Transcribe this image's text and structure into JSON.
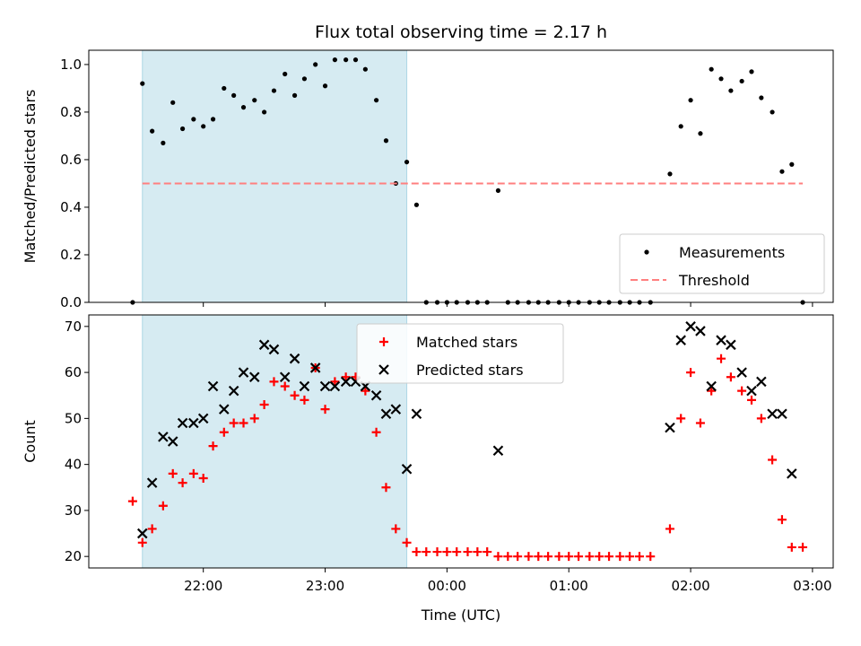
{
  "chart_data": {
    "title": "Flux total observing time = 2.17 h",
    "xlabel": "Time (UTC)",
    "x_ticks": [
      "22:00",
      "23:00",
      "00:00",
      "01:00",
      "02:00",
      "03:00"
    ],
    "x_range_hours": [
      21.06,
      27.17
    ],
    "shaded_interval_hours": [
      21.5,
      23.67
    ],
    "colors": {
      "shade": "#add8e6",
      "matched": "#ff0000",
      "predicted": "#000000",
      "threshold": "#ff7f7f",
      "measurements": "#000000"
    },
    "panels": [
      {
        "type": "scatter",
        "ylabel": "Matched/Predicted stars",
        "ylim": [
          0,
          1.06
        ],
        "y_ticks": [
          "0.0",
          "0.2",
          "0.4",
          "0.6",
          "0.8",
          "1.0"
        ],
        "legend_position": "lower-right",
        "series": [
          {
            "name": "Measurements",
            "marker": "dot",
            "points": [
              [
                21.42,
                0.0
              ],
              [
                21.5,
                0.92
              ],
              [
                21.58,
                0.72
              ],
              [
                21.67,
                0.67
              ],
              [
                21.75,
                0.84
              ],
              [
                21.83,
                0.73
              ],
              [
                21.92,
                0.77
              ],
              [
                22.0,
                0.74
              ],
              [
                22.08,
                0.77
              ],
              [
                22.17,
                0.9
              ],
              [
                22.25,
                0.87
              ],
              [
                22.33,
                0.82
              ],
              [
                22.42,
                0.85
              ],
              [
                22.5,
                0.8
              ],
              [
                22.58,
                0.89
              ],
              [
                22.67,
                0.96
              ],
              [
                22.75,
                0.87
              ],
              [
                22.83,
                0.94
              ],
              [
                22.92,
                1.0
              ],
              [
                23.0,
                0.91
              ],
              [
                23.08,
                1.02
              ],
              [
                23.17,
                1.02
              ],
              [
                23.25,
                1.02
              ],
              [
                23.33,
                0.98
              ],
              [
                23.42,
                0.85
              ],
              [
                23.5,
                0.68
              ],
              [
                23.58,
                0.5
              ],
              [
                23.67,
                0.59
              ],
              [
                23.75,
                0.41
              ],
              [
                23.83,
                0.0
              ],
              [
                23.92,
                0.0
              ],
              [
                24.0,
                0.0
              ],
              [
                24.08,
                0.0
              ],
              [
                24.17,
                0.0
              ],
              [
                24.25,
                0.0
              ],
              [
                24.33,
                0.0
              ],
              [
                24.42,
                0.47
              ],
              [
                24.5,
                0.0
              ],
              [
                24.58,
                0.0
              ],
              [
                24.67,
                0.0
              ],
              [
                24.75,
                0.0
              ],
              [
                24.83,
                0.0
              ],
              [
                24.92,
                0.0
              ],
              [
                25.0,
                0.0
              ],
              [
                25.08,
                0.0
              ],
              [
                25.17,
                0.0
              ],
              [
                25.25,
                0.0
              ],
              [
                25.33,
                0.0
              ],
              [
                25.42,
                0.0
              ],
              [
                25.5,
                0.0
              ],
              [
                25.58,
                0.0
              ],
              [
                25.67,
                0.0
              ],
              [
                25.83,
                0.54
              ],
              [
                25.92,
                0.74
              ],
              [
                26.0,
                0.85
              ],
              [
                26.08,
                0.71
              ],
              [
                26.17,
                0.98
              ],
              [
                26.25,
                0.94
              ],
              [
                26.33,
                0.89
              ],
              [
                26.42,
                0.93
              ],
              [
                26.5,
                0.97
              ],
              [
                26.58,
                0.86
              ],
              [
                26.67,
                0.8
              ],
              [
                26.75,
                0.55
              ],
              [
                26.83,
                0.58
              ],
              [
                26.92,
                0.0
              ]
            ]
          },
          {
            "name": "Threshold",
            "marker": "dashed-line",
            "points": [
              [
                21.5,
                0.5
              ],
              [
                26.92,
                0.5
              ]
            ]
          }
        ]
      },
      {
        "type": "scatter",
        "ylabel": "Count",
        "ylim": [
          17.5,
          72.5
        ],
        "y_ticks": [
          "20",
          "30",
          "40",
          "50",
          "60",
          "70"
        ],
        "legend_position": "top-center",
        "series": [
          {
            "name": "Matched stars",
            "marker": "plus",
            "points": [
              [
                21.42,
                32
              ],
              [
                21.5,
                23
              ],
              [
                21.58,
                26
              ],
              [
                21.67,
                31
              ],
              [
                21.75,
                38
              ],
              [
                21.83,
                36
              ],
              [
                21.92,
                38
              ],
              [
                22.0,
                37
              ],
              [
                22.08,
                44
              ],
              [
                22.17,
                47
              ],
              [
                22.25,
                49
              ],
              [
                22.33,
                49
              ],
              [
                22.42,
                50
              ],
              [
                22.5,
                53
              ],
              [
                22.58,
                58
              ],
              [
                22.67,
                57
              ],
              [
                22.75,
                55
              ],
              [
                22.83,
                54
              ],
              [
                22.92,
                61
              ],
              [
                23.0,
                52
              ],
              [
                23.08,
                58
              ],
              [
                23.17,
                59
              ],
              [
                23.25,
                59
              ],
              [
                23.33,
                56
              ],
              [
                23.42,
                47
              ],
              [
                23.5,
                35
              ],
              [
                23.58,
                26
              ],
              [
                23.67,
                23
              ],
              [
                23.75,
                21
              ],
              [
                23.83,
                21
              ],
              [
                23.92,
                21
              ],
              [
                24.0,
                21
              ],
              [
                24.08,
                21
              ],
              [
                24.17,
                21
              ],
              [
                24.25,
                21
              ],
              [
                24.33,
                21
              ],
              [
                24.42,
                20
              ],
              [
                24.5,
                20
              ],
              [
                24.58,
                20
              ],
              [
                24.67,
                20
              ],
              [
                24.75,
                20
              ],
              [
                24.83,
                20
              ],
              [
                24.92,
                20
              ],
              [
                25.0,
                20
              ],
              [
                25.08,
                20
              ],
              [
                25.17,
                20
              ],
              [
                25.25,
                20
              ],
              [
                25.33,
                20
              ],
              [
                25.42,
                20
              ],
              [
                25.5,
                20
              ],
              [
                25.58,
                20
              ],
              [
                25.67,
                20
              ],
              [
                25.83,
                26
              ],
              [
                25.92,
                50
              ],
              [
                26.0,
                60
              ],
              [
                26.08,
                49
              ],
              [
                26.17,
                56
              ],
              [
                26.25,
                63
              ],
              [
                26.33,
                59
              ],
              [
                26.42,
                56
              ],
              [
                26.5,
                54
              ],
              [
                26.58,
                50
              ],
              [
                26.67,
                41
              ],
              [
                26.75,
                28
              ],
              [
                26.83,
                22
              ],
              [
                26.92,
                22
              ]
            ]
          },
          {
            "name": "Predicted stars",
            "marker": "x",
            "points": [
              [
                21.5,
                25
              ],
              [
                21.58,
                36
              ],
              [
                21.67,
                46
              ],
              [
                21.75,
                45
              ],
              [
                21.83,
                49
              ],
              [
                21.92,
                49
              ],
              [
                22.0,
                50
              ],
              [
                22.08,
                57
              ],
              [
                22.17,
                52
              ],
              [
                22.25,
                56
              ],
              [
                22.33,
                60
              ],
              [
                22.42,
                59
              ],
              [
                22.5,
                66
              ],
              [
                22.58,
                65
              ],
              [
                22.67,
                59
              ],
              [
                22.75,
                63
              ],
              [
                22.83,
                57
              ],
              [
                22.92,
                61
              ],
              [
                23.0,
                57
              ],
              [
                23.08,
                57
              ],
              [
                23.17,
                58
              ],
              [
                23.25,
                58
              ],
              [
                23.33,
                57
              ],
              [
                23.42,
                55
              ],
              [
                23.5,
                51
              ],
              [
                23.58,
                52
              ],
              [
                23.67,
                39
              ],
              [
                23.75,
                51
              ],
              [
                24.42,
                43
              ],
              [
                25.83,
                48
              ],
              [
                25.92,
                67
              ],
              [
                26.0,
                70
              ],
              [
                26.08,
                69
              ],
              [
                26.17,
                57
              ],
              [
                26.25,
                67
              ],
              [
                26.33,
                66
              ],
              [
                26.42,
                60
              ],
              [
                26.5,
                56
              ],
              [
                26.58,
                58
              ],
              [
                26.67,
                51
              ],
              [
                26.75,
                51
              ],
              [
                26.83,
                38
              ]
            ]
          }
        ]
      }
    ]
  }
}
